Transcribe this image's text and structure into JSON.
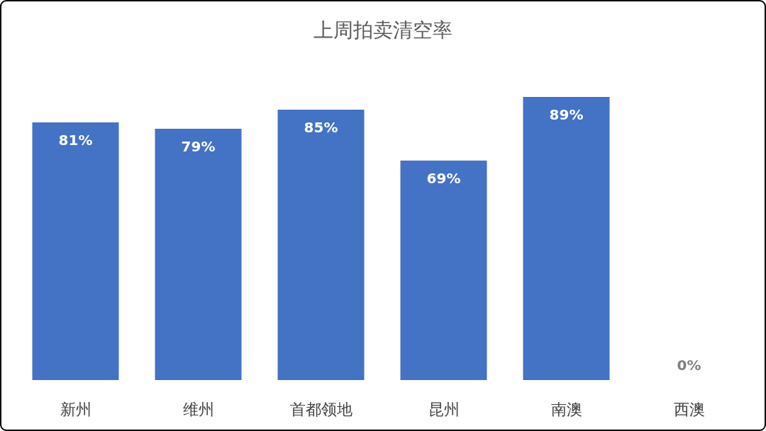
{
  "chart_data": {
    "type": "bar",
    "title": "上周拍卖清空率",
    "categories": [
      "新州",
      "维州",
      "首都领地",
      "昆州",
      "南澳",
      "西澳"
    ],
    "values": [
      81,
      79,
      85,
      69,
      89,
      0
    ],
    "value_labels": [
      "81%",
      "79%",
      "85%",
      "69%",
      "89%",
      "0%"
    ],
    "color": "#4472c4"
  }
}
